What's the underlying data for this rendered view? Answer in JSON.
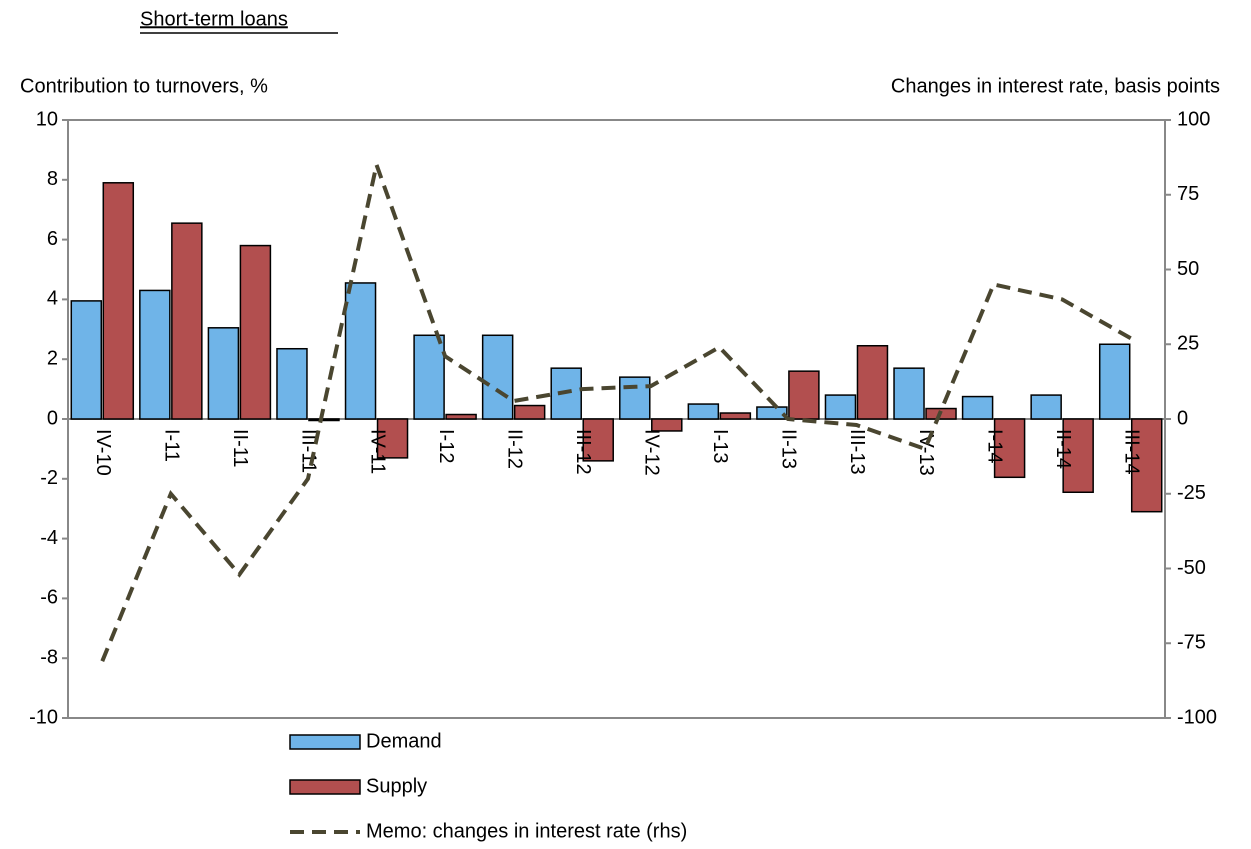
{
  "chart_data": {
    "type": "combo",
    "title": "Short-term loans",
    "y_label": "Contribution to turnovers, %",
    "y2_label": "Changes in interest rate, basis points",
    "categories": [
      "IV-10",
      "I-11",
      "II-11",
      "III-11",
      "IV-11",
      "I-12",
      "II-12",
      "III-12",
      "IV-12",
      "I-13",
      "II-13",
      "III-13",
      "IV-13",
      "I-14",
      "II-14",
      "III-14"
    ],
    "series": [
      {
        "name": "Demand",
        "type": "bar",
        "color": "#6fb4e8",
        "values": [
          3.95,
          4.3,
          3.05,
          2.35,
          4.55,
          2.8,
          2.8,
          1.7,
          1.4,
          0.5,
          0.4,
          0.8,
          1.7,
          0.75,
          0.8,
          2.5
        ]
      },
      {
        "name": "Supply",
        "type": "bar",
        "color": "#b24f4f",
        "values": [
          7.9,
          6.55,
          5.8,
          -0.05,
          -1.3,
          0.15,
          0.45,
          -1.4,
          -0.4,
          0.2,
          1.6,
          2.45,
          0.35,
          -1.95,
          -2.45,
          -3.1
        ]
      },
      {
        "name": "Memo: changes in interest rate (rhs)",
        "type": "line",
        "axis": "y2",
        "color": "#4a4630",
        "values": [
          -81,
          -25,
          -52,
          -20,
          85,
          21,
          6,
          10,
          11,
          24,
          0,
          -2,
          -10,
          45,
          40,
          27
        ]
      }
    ],
    "ylim": [
      -10,
      10
    ],
    "yticks": [
      -10,
      -8,
      -6,
      -4,
      -2,
      0,
      2,
      4,
      6,
      8,
      10
    ],
    "y2lim": [
      -100,
      100
    ],
    "y2ticks": [
      -100,
      -75,
      -50,
      -25,
      0,
      25,
      50,
      75,
      100
    ],
    "grid": false
  }
}
